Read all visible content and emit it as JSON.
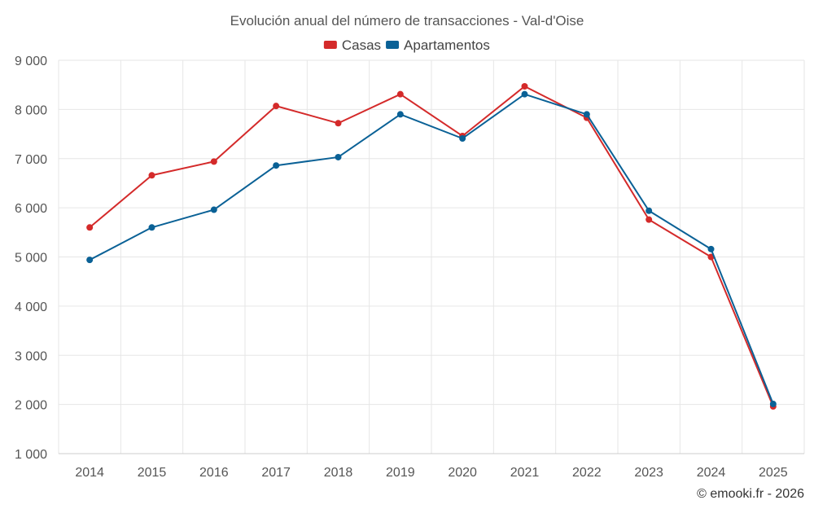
{
  "chart_data": {
    "type": "line",
    "title": "Evolución anual del número de transacciones - Val-d'Oise",
    "categories": [
      "2014",
      "2015",
      "2016",
      "2017",
      "2018",
      "2019",
      "2020",
      "2021",
      "2022",
      "2023",
      "2024",
      "2025"
    ],
    "series": [
      {
        "name": "Casas",
        "color": "#d42a2a",
        "values": [
          5600,
          6660,
          6940,
          8070,
          7720,
          8310,
          7460,
          8470,
          7830,
          5760,
          5000,
          1960
        ]
      },
      {
        "name": "Apartamentos",
        "color": "#0a6196",
        "values": [
          4940,
          5600,
          5960,
          6860,
          7030,
          7900,
          7410,
          8310,
          7900,
          5940,
          5160,
          2010
        ]
      }
    ],
    "ylim": [
      1000,
      9000
    ],
    "yticks": [
      1000,
      2000,
      3000,
      4000,
      5000,
      6000,
      7000,
      8000,
      9000
    ],
    "ytick_labels": [
      "1 000",
      "2 000",
      "3 000",
      "4 000",
      "5 000",
      "6 000",
      "7 000",
      "8 000",
      "9 000"
    ],
    "grid": true,
    "legend_position": "top-center"
  },
  "credit": "© emooki.fr - 2026"
}
